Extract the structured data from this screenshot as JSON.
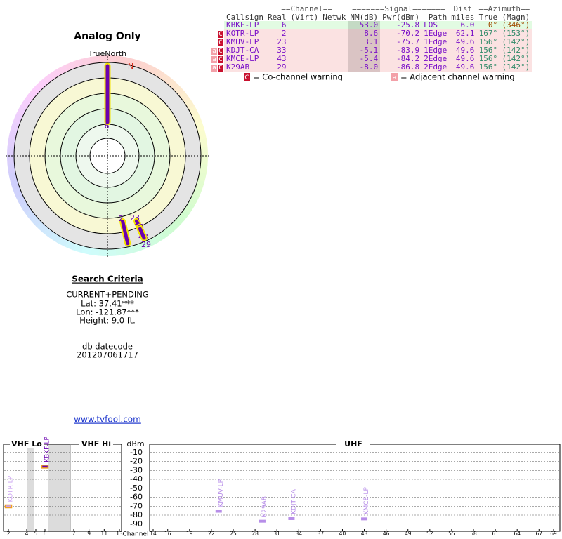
{
  "report": {
    "title": "Analog Only"
  },
  "radar": {
    "north_label": "TrueNorth",
    "n_marker": "N",
    "stations": [
      {
        "label": "6",
        "azimuth": 0,
        "nm": 53.0
      },
      {
        "label": "2",
        "azimuth": 167,
        "nm": 8.6
      },
      {
        "label": "23",
        "azimuth": 156,
        "nm": 3.1
      },
      {
        "label": "33",
        "azimuth": 156,
        "nm": -5.1
      },
      {
        "label": "43",
        "azimuth": 156,
        "nm": -5.4
      },
      {
        "label": "29",
        "azimuth": 156,
        "nm": -8.0
      }
    ]
  },
  "table": {
    "group_header": [
      "==Channel==",
      "=======Signal=======",
      "Dist",
      "==Azimuth=="
    ],
    "columns": [
      "Callsign",
      "Real",
      "(Virt)",
      "Netwk",
      "NM(dB)",
      "Pwr(dBm)",
      "Path",
      "miles",
      "True",
      "(Magn)"
    ],
    "rows": [
      {
        "warnings": [],
        "cells": [
          "KBKF-LP",
          "6",
          "",
          "",
          "53.0",
          "-25.8",
          "LOS",
          "6.0",
          "0°",
          "(346°)"
        ]
      },
      {
        "warnings": [
          "C"
        ],
        "cells": [
          "KOTR-LP",
          "2",
          "",
          "",
          "8.6",
          "-70.2",
          "1Edge",
          "62.1",
          "167°",
          "(153°)"
        ]
      },
      {
        "warnings": [
          "C"
        ],
        "cells": [
          "KMUV-LP",
          "23",
          "",
          "",
          "3.1",
          "-75.7",
          "1Edge",
          "49.6",
          "156°",
          "(142°)"
        ]
      },
      {
        "warnings": [
          "a",
          "C"
        ],
        "cells": [
          "KDJT-CA",
          "33",
          "",
          "",
          "-5.1",
          "-83.9",
          "1Edge",
          "49.6",
          "156°",
          "(142°)"
        ]
      },
      {
        "warnings": [
          "a",
          "C"
        ],
        "cells": [
          "KMCE-LP",
          "43",
          "",
          "",
          "-5.4",
          "-84.2",
          "2Edge",
          "49.6",
          "156°",
          "(142°)"
        ]
      },
      {
        "warnings": [
          "a",
          "C"
        ],
        "cells": [
          "K29AB",
          "29",
          "",
          "",
          "-8.0",
          "-86.8",
          "2Edge",
          "49.6",
          "156°",
          "(142°)"
        ]
      }
    ]
  },
  "legend": [
    {
      "mark": "C",
      "text": "= Co-channel warning"
    },
    {
      "mark": "a",
      "text": "= Adjacent channel warning"
    }
  ],
  "search": {
    "heading": "Search Criteria",
    "lines": [
      "CURRENT+PENDING",
      "Lat: 37.41***",
      "Lon: -121.87***",
      "Height: 9.0 ft."
    ]
  },
  "datecode": {
    "label": "db datecode",
    "value": "201207061717"
  },
  "link": "www.tvfool.com",
  "spectrum": {
    "ylabel": "dBm",
    "xlabel": "Channel",
    "ylim": [
      0,
      -100
    ],
    "yticks": [
      -10,
      -20,
      -30,
      -40,
      -50,
      -60,
      -70,
      -80,
      -90
    ],
    "bands": [
      {
        "name": "VHF Lo",
        "ticks": [
          2,
          4,
          5,
          6
        ]
      },
      {
        "name": "VHF Hi",
        "ticks": [
          7,
          9,
          11,
          13
        ]
      },
      {
        "name": "UHF",
        "ticks": [
          14,
          16,
          19,
          22,
          25,
          28,
          31,
          34,
          37,
          40,
          43,
          46,
          49,
          52,
          55,
          58,
          61,
          64,
          67,
          69
        ]
      }
    ],
    "stations": [
      {
        "name": "KOTR-LP",
        "channel": 2,
        "pwr": -70.2,
        "color": "#c9a0f0"
      },
      {
        "name": "KBKF-LP",
        "channel": 6,
        "pwr": -25.8,
        "color": "#6a00b0"
      },
      {
        "name": "KMUV-LP",
        "channel": 23,
        "pwr": -75.7,
        "color": "#b78ee8"
      },
      {
        "name": "K29AB",
        "channel": 29,
        "pwr": -86.8,
        "color": "#b78ee8"
      },
      {
        "name": "KDJT-CA",
        "channel": 33,
        "pwr": -83.9,
        "color": "#b78ee8"
      },
      {
        "name": "KMCE-LP",
        "channel": 43,
        "pwr": -84.2,
        "color": "#b78ee8"
      }
    ]
  }
}
